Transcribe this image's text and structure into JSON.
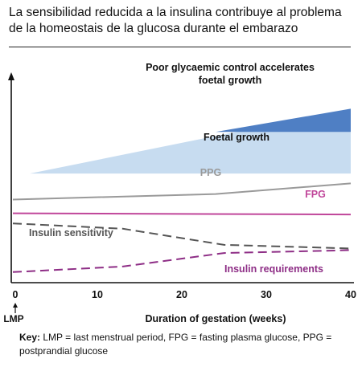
{
  "title": "La sensibilidad reducida a la insulina contribuye al problema de la homeostais de la glucosa durante el embarazo",
  "chart_data": {
    "type": "line",
    "xlabel": "Duration of gestation (weeks)",
    "ylabel": "",
    "xlim": [
      0,
      40
    ],
    "ylim": [
      0,
      100
    ],
    "x_ticks": [
      0,
      10,
      20,
      30,
      40
    ],
    "x_marker": {
      "x": 0,
      "label": "LMP"
    },
    "grid": false,
    "areas": [
      {
        "name": "Foetal growth",
        "color": "#c7dcf0",
        "points": [
          [
            2,
            45.3
          ],
          [
            40,
            72.2
          ]
        ],
        "base": 45.3
      },
      {
        "name": "Poor glycaemic control accelerates foetal growth",
        "color": "#4f7fc4",
        "points": [
          [
            24,
            62.6
          ],
          [
            40,
            72.2
          ]
        ],
        "base": 62.6
      }
    ],
    "annotations": [
      {
        "text": "Poor  glycaemic  control accelerates",
        "x": 27,
        "y": 79
      },
      {
        "text": "foetal growth",
        "x": 28,
        "y": 74.5
      }
    ],
    "series": [
      {
        "name": "PPG",
        "style": "solid",
        "color": "#9a9a9a",
        "x": [
          0,
          24,
          40
        ],
        "y": [
          34.5,
          36.8,
          41.2
        ]
      },
      {
        "name": "FPG",
        "style": "solid",
        "color": "#c0469a",
        "x": [
          0,
          40
        ],
        "y": [
          28.8,
          28.3
        ]
      },
      {
        "name": "Insulin sensitivity",
        "style": "dashed",
        "color": "#555555",
        "x": [
          0,
          13,
          25,
          40
        ],
        "y": [
          24.6,
          22.4,
          15.7,
          14.2
        ]
      },
      {
        "name": "Insulin requirements",
        "style": "dashed",
        "color": "#8e2e86",
        "x": [
          0,
          13,
          25,
          40
        ],
        "y": [
          4.4,
          6.7,
          12.3,
          13.5
        ]
      }
    ]
  },
  "key": {
    "label": "Key:",
    "text": "LMP = last menstrual period, FPG = fasting plasma glucose, PPG = postprandial glucose"
  }
}
